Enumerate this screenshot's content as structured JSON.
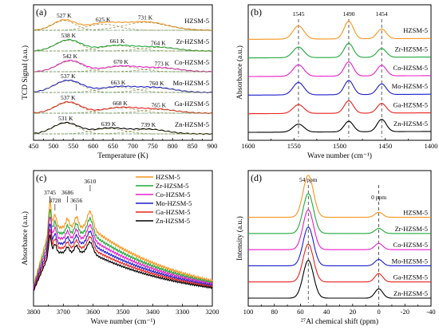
{
  "colors": {
    "HZSM-5": "#f7941d",
    "Zr-HZSM-5": "#1fa83a",
    "Co-HZSM-5": "#e81ec7",
    "Mo-HZSM-5": "#1d1fcb",
    "Ga-HZSM-5": "#e8221e",
    "Zn-HZSM-5": "#000000"
  },
  "chart_data": [
    {
      "panel": "(a)",
      "type": "line",
      "xlabel": "Temperature (K)",
      "ylabel": "TCD Signal (a.u.)",
      "xlim": [
        450,
        900
      ],
      "x_ticks": [
        450,
        500,
        550,
        600,
        650,
        700,
        750,
        800,
        850,
        900
      ],
      "series": [
        {
          "name": "HZSM-5",
          "offset": 5,
          "peaks": [
            {
              "x": 527,
              "h": 0.55,
              "w": 28,
              "label": "527 K"
            },
            {
              "x": 625,
              "h": 0.35,
              "w": 40,
              "label": "625 K"
            },
            {
              "x": 731,
              "h": 0.45,
              "w": 55,
              "label": "731 K"
            }
          ]
        },
        {
          "name": "Zr-HZSM-5",
          "offset": 4,
          "peaks": [
            {
              "x": 538,
              "h": 0.6,
              "w": 32,
              "label": "538 K"
            },
            {
              "x": 661,
              "h": 0.3,
              "w": 45,
              "label": "661 K"
            },
            {
              "x": 764,
              "h": 0.2,
              "w": 45,
              "label": "764 K"
            }
          ]
        },
        {
          "name": "Co-HZSM-5",
          "offset": 3,
          "peaks": [
            {
              "x": 542,
              "h": 0.6,
              "w": 32,
              "label": "542 K"
            },
            {
              "x": 670,
              "h": 0.3,
              "w": 45,
              "label": "670 K"
            },
            {
              "x": 773,
              "h": 0.2,
              "w": 45,
              "label": "773 K"
            }
          ]
        },
        {
          "name": "Mo-HZSM-5",
          "offset": 2,
          "peaks": [
            {
              "x": 537,
              "h": 0.65,
              "w": 35,
              "label": "537 K"
            },
            {
              "x": 663,
              "h": 0.3,
              "w": 45,
              "label": "663 K"
            },
            {
              "x": 760,
              "h": 0.25,
              "w": 45,
              "label": "760 K"
            }
          ]
        },
        {
          "name": "Ga-HZSM-5",
          "offset": 1,
          "peaks": [
            {
              "x": 537,
              "h": 0.6,
              "w": 32,
              "label": "537 K"
            },
            {
              "x": 668,
              "h": 0.3,
              "w": 45,
              "label": "668 K"
            },
            {
              "x": 765,
              "h": 0.2,
              "w": 45,
              "label": "765 K"
            }
          ]
        },
        {
          "name": "Zn-HZSM-5",
          "offset": 0,
          "peaks": [
            {
              "x": 531,
              "h": 0.6,
              "w": 32,
              "label": "531 K"
            },
            {
              "x": 639,
              "h": 0.3,
              "w": 40,
              "label": "639 K"
            },
            {
              "x": 739,
              "h": 0.25,
              "w": 45,
              "label": "739 K"
            }
          ]
        }
      ]
    },
    {
      "panel": "(b)",
      "type": "line",
      "xlabel": "Wave number (cm⁻¹)",
      "ylabel": "Absorbance (a.u.)",
      "xlim": [
        1600,
        1400
      ],
      "x_ticks": [
        1600,
        1550,
        1500,
        1450,
        1400
      ],
      "reference_lines": [
        1545,
        1490,
        1454
      ],
      "reference_labels": [
        "1545",
        "1490",
        "1454"
      ],
      "series": [
        {
          "name": "HZSM-5",
          "offset": 5,
          "peaks": [
            {
              "x": 1545,
              "h": 0.75,
              "w": 6
            },
            {
              "x": 1490,
              "h": 1.0,
              "w": 5
            },
            {
              "x": 1454,
              "h": 0.55,
              "w": 5
            }
          ]
        },
        {
          "name": "Zr-HZSM-5",
          "offset": 4,
          "peaks": [
            {
              "x": 1545,
              "h": 0.6,
              "w": 6
            },
            {
              "x": 1490,
              "h": 0.8,
              "w": 5
            },
            {
              "x": 1454,
              "h": 0.5,
              "w": 5
            }
          ]
        },
        {
          "name": "Co-HZSM-5",
          "offset": 3,
          "peaks": [
            {
              "x": 1545,
              "h": 0.65,
              "w": 6
            },
            {
              "x": 1490,
              "h": 0.8,
              "w": 5
            },
            {
              "x": 1454,
              "h": 0.6,
              "w": 5
            }
          ]
        },
        {
          "name": "Mo-HZSM-5",
          "offset": 2,
          "peaks": [
            {
              "x": 1545,
              "h": 0.7,
              "w": 6
            },
            {
              "x": 1490,
              "h": 0.8,
              "w": 5
            },
            {
              "x": 1454,
              "h": 0.6,
              "w": 5
            }
          ]
        },
        {
          "name": "Ga-HZSM-5",
          "offset": 1,
          "peaks": [
            {
              "x": 1545,
              "h": 0.5,
              "w": 6
            },
            {
              "x": 1490,
              "h": 0.7,
              "w": 5
            },
            {
              "x": 1454,
              "h": 0.55,
              "w": 5
            }
          ]
        },
        {
          "name": "Zn-HZSM-5",
          "offset": 0,
          "peaks": [
            {
              "x": 1545,
              "h": 0.45,
              "w": 6
            },
            {
              "x": 1490,
              "h": 0.6,
              "w": 5
            },
            {
              "x": 1454,
              "h": 0.7,
              "w": 5
            }
          ]
        }
      ]
    },
    {
      "panel": "(c)",
      "type": "line",
      "xlabel": "Wave number (cm⁻¹)",
      "ylabel": "Absorbance (a.u.)",
      "xlim": [
        3800,
        3200
      ],
      "x_ticks": [
        3800,
        3700,
        3600,
        3500,
        3400,
        3300,
        3200
      ],
      "peak_labels": [
        {
          "x": 3745,
          "label": "3745"
        },
        {
          "x": 3728,
          "label": "3728"
        },
        {
          "x": 3686,
          "label": "3686"
        },
        {
          "x": 3656,
          "label": "3656"
        },
        {
          "x": 3610,
          "label": "3610"
        }
      ],
      "series": [
        {
          "name": "HZSM-5",
          "level": 1.0
        },
        {
          "name": "Zr-HZSM-5",
          "level": 0.92
        },
        {
          "name": "Co-HZSM-5",
          "level": 0.85
        },
        {
          "name": "Mo-HZSM-5",
          "level": 0.78
        },
        {
          "name": "Ga-HZSM-5",
          "level": 0.72
        },
        {
          "name": "Zn-HZSM-5",
          "level": 0.66
        }
      ],
      "legend": "top-right"
    },
    {
      "panel": "(d)",
      "type": "line",
      "xlabel": "²⁷Al chemical shift (ppm)",
      "ylabel": "Intensity (a.u.)",
      "xlim": [
        100,
        -40
      ],
      "x_ticks": [
        100,
        80,
        60,
        40,
        20,
        0,
        -20,
        -40
      ],
      "reference_lines": [
        54,
        0
      ],
      "reference_labels": [
        "54 ppm",
        "0 ppm"
      ],
      "series": [
        {
          "name": "HZSM-5",
          "offset": 5,
          "peaks": [
            {
              "x": 54,
              "h": 1.0,
              "w": 4
            },
            {
              "x": 0,
              "h": 0.12,
              "w": 3
            }
          ]
        },
        {
          "name": "Zr-HZSM-5",
          "offset": 4,
          "peaks": [
            {
              "x": 54,
              "h": 0.95,
              "w": 4
            },
            {
              "x": 0,
              "h": 0.12,
              "w": 3
            }
          ]
        },
        {
          "name": "Co-HZSM-5",
          "offset": 3,
          "peaks": [
            {
              "x": 54,
              "h": 0.95,
              "w": 4
            },
            {
              "x": 0,
              "h": 0.15,
              "w": 3
            }
          ]
        },
        {
          "name": "Mo-HZSM-5",
          "offset": 2,
          "peaks": [
            {
              "x": 54,
              "h": 0.92,
              "w": 4
            },
            {
              "x": 0,
              "h": 0.15,
              "w": 3
            }
          ]
        },
        {
          "name": "Ga-HZSM-5",
          "offset": 1,
          "peaks": [
            {
              "x": 54,
              "h": 0.9,
              "w": 4
            },
            {
              "x": 0,
              "h": 0.2,
              "w": 3
            }
          ]
        },
        {
          "name": "Zn-HZSM-5",
          "offset": 0,
          "peaks": [
            {
              "x": 54,
              "h": 0.9,
              "w": 4
            },
            {
              "x": 0,
              "h": 0.22,
              "w": 3
            }
          ]
        }
      ]
    }
  ]
}
